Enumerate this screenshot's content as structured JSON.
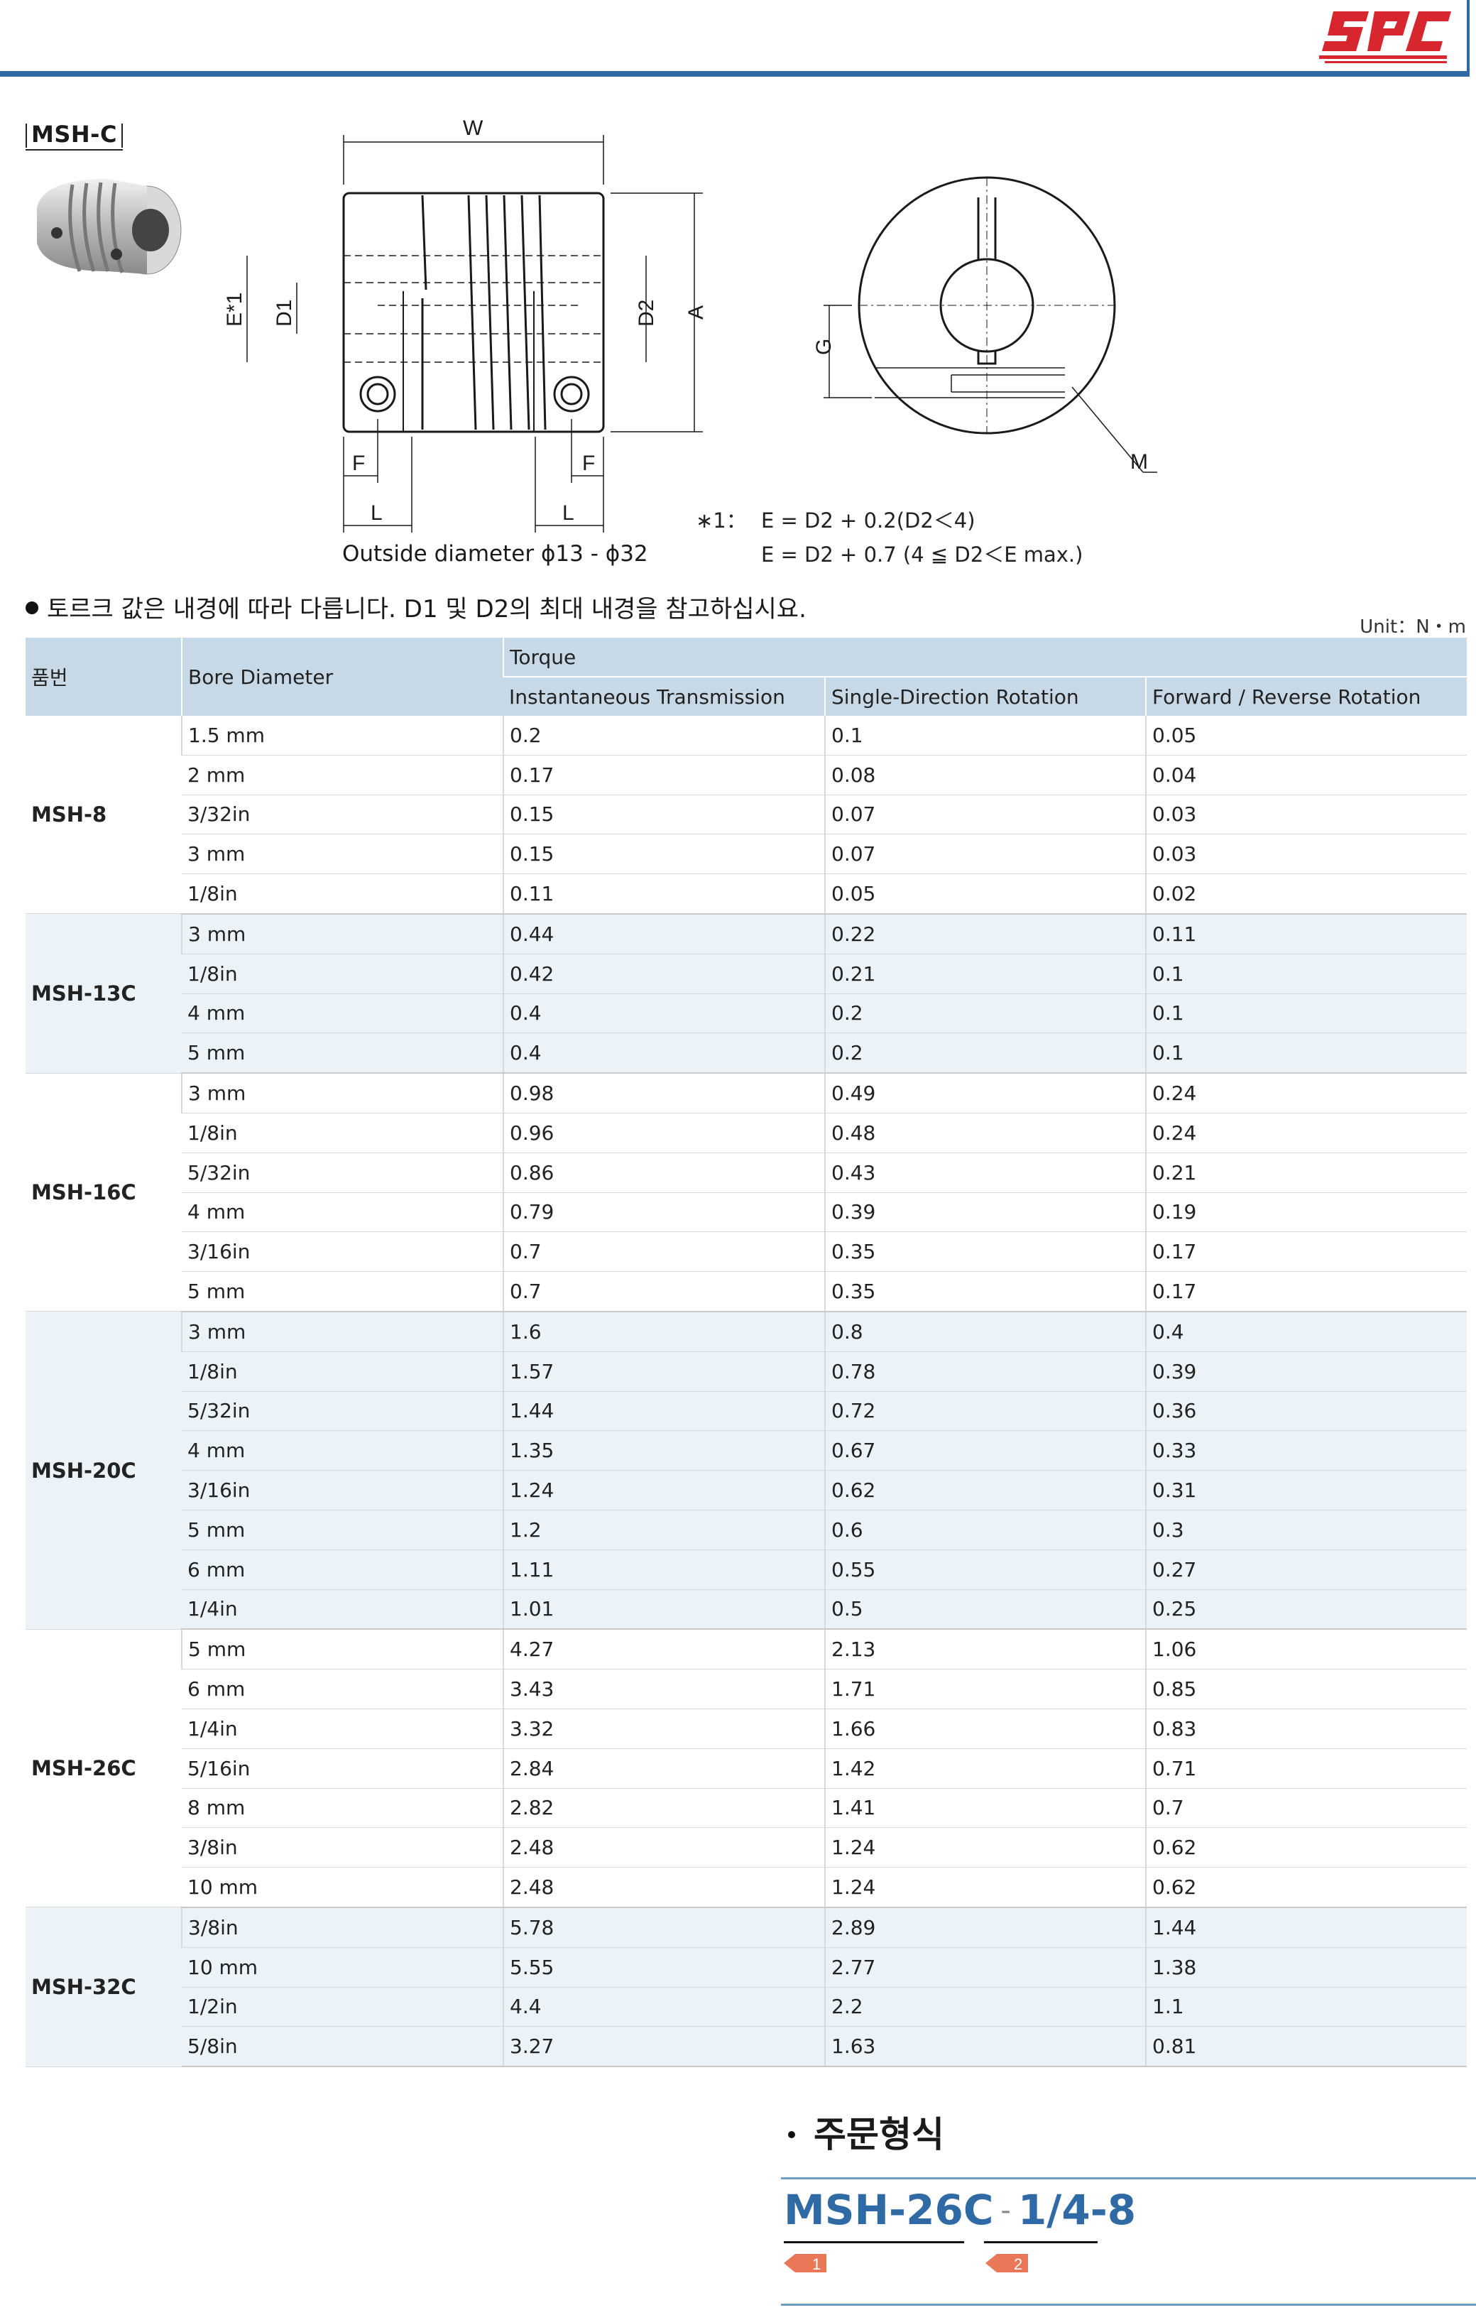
{
  "header": {
    "logo_text": "SPC"
  },
  "product": {
    "label": "MSH-C"
  },
  "drawing": {
    "labels": {
      "W": "W",
      "A": "A",
      "D1": "D1",
      "D2": "D2",
      "E": "E*1",
      "F": "F",
      "L": "L",
      "G": "G",
      "M": "M"
    },
    "outside_diameter": "Outside diameter ϕ13 - ϕ32",
    "note_mark": "∗1：",
    "note_line1": "E = D2 + 0.2(D2＜4)",
    "note_line2": "E = D2 + 0.7 (4 ≦ D2＜E max.)"
  },
  "notice": "토르크 값은 내경에 따라 다릅니다. D1 및 D2의 최대 내경을 참고하십시요.",
  "unit": "Unit：N・m",
  "table": {
    "headers": {
      "part": "품번",
      "bore": "Bore Diameter",
      "torque": "Torque",
      "inst": "Instantaneous Transmission",
      "single": "Single-Direction Rotation",
      "fwdrev": "Forward / Reverse Rotation"
    },
    "groups": [
      {
        "model": "MSH-8",
        "rows": [
          [
            "1.5 mm",
            "0.2",
            "0.1",
            "0.05"
          ],
          [
            "2 mm",
            "0.17",
            "0.08",
            "0.04"
          ],
          [
            "3/32in",
            "0.15",
            "0.07",
            "0.03"
          ],
          [
            "3 mm",
            "0.15",
            "0.07",
            "0.03"
          ],
          [
            "1/8in",
            "0.11",
            "0.05",
            "0.02"
          ]
        ]
      },
      {
        "model": "MSH-13C",
        "rows": [
          [
            "3 mm",
            "0.44",
            "0.22",
            "0.11"
          ],
          [
            "1/8in",
            "0.42",
            "0.21",
            "0.1"
          ],
          [
            "4 mm",
            "0.4",
            "0.2",
            "0.1"
          ],
          [
            "5 mm",
            "0.4",
            "0.2",
            "0.1"
          ]
        ]
      },
      {
        "model": "MSH-16C",
        "rows": [
          [
            "3 mm",
            "0.98",
            "0.49",
            "0.24"
          ],
          [
            "1/8in",
            "0.96",
            "0.48",
            "0.24"
          ],
          [
            "5/32in",
            "0.86",
            "0.43",
            "0.21"
          ],
          [
            "4 mm",
            "0.79",
            "0.39",
            "0.19"
          ],
          [
            "3/16in",
            "0.7",
            "0.35",
            "0.17"
          ],
          [
            "5 mm",
            "0.7",
            "0.35",
            "0.17"
          ]
        ]
      },
      {
        "model": "MSH-20C",
        "rows": [
          [
            "3 mm",
            "1.6",
            "0.8",
            "0.4"
          ],
          [
            "1/8in",
            "1.57",
            "0.78",
            "0.39"
          ],
          [
            "5/32in",
            "1.44",
            "0.72",
            "0.36"
          ],
          [
            "4 mm",
            "1.35",
            "0.67",
            "0.33"
          ],
          [
            "3/16in",
            "1.24",
            "0.62",
            "0.31"
          ],
          [
            "5 mm",
            "1.2",
            "0.6",
            "0.3"
          ],
          [
            "6 mm",
            "1.11",
            "0.55",
            "0.27"
          ],
          [
            "1/4in",
            "1.01",
            "0.5",
            "0.25"
          ]
        ]
      },
      {
        "model": "MSH-26C",
        "rows": [
          [
            "5 mm",
            "4.27",
            "2.13",
            "1.06"
          ],
          [
            "6 mm",
            "3.43",
            "1.71",
            "0.85"
          ],
          [
            "1/4in",
            "3.32",
            "1.66",
            "0.83"
          ],
          [
            "5/16in",
            "2.84",
            "1.42",
            "0.71"
          ],
          [
            "8 mm",
            "2.82",
            "1.41",
            "0.7"
          ],
          [
            "3/8in",
            "2.48",
            "1.24",
            "0.62"
          ],
          [
            "10 mm",
            "2.48",
            "1.24",
            "0.62"
          ]
        ]
      },
      {
        "model": "MSH-32C",
        "rows": [
          [
            "3/8in",
            "5.78",
            "2.89",
            "1.44"
          ],
          [
            "10 mm",
            "5.55",
            "2.77",
            "1.38"
          ],
          [
            "1/2in",
            "4.4",
            "2.2",
            "1.1"
          ],
          [
            "5/8in",
            "3.27",
            "1.63",
            "0.81"
          ]
        ]
      }
    ]
  },
  "order": {
    "title": "주문형식",
    "code_part1": "MSH-26C",
    "dash": "-",
    "code_part2": "1/4-8",
    "tag1": "1",
    "tag2": "2"
  },
  "colors": {
    "accent": "#2f6aa5",
    "logo_red": "#d8262e",
    "header_bg": "#c7d9e6",
    "stripe": "#ecf3f8"
  }
}
